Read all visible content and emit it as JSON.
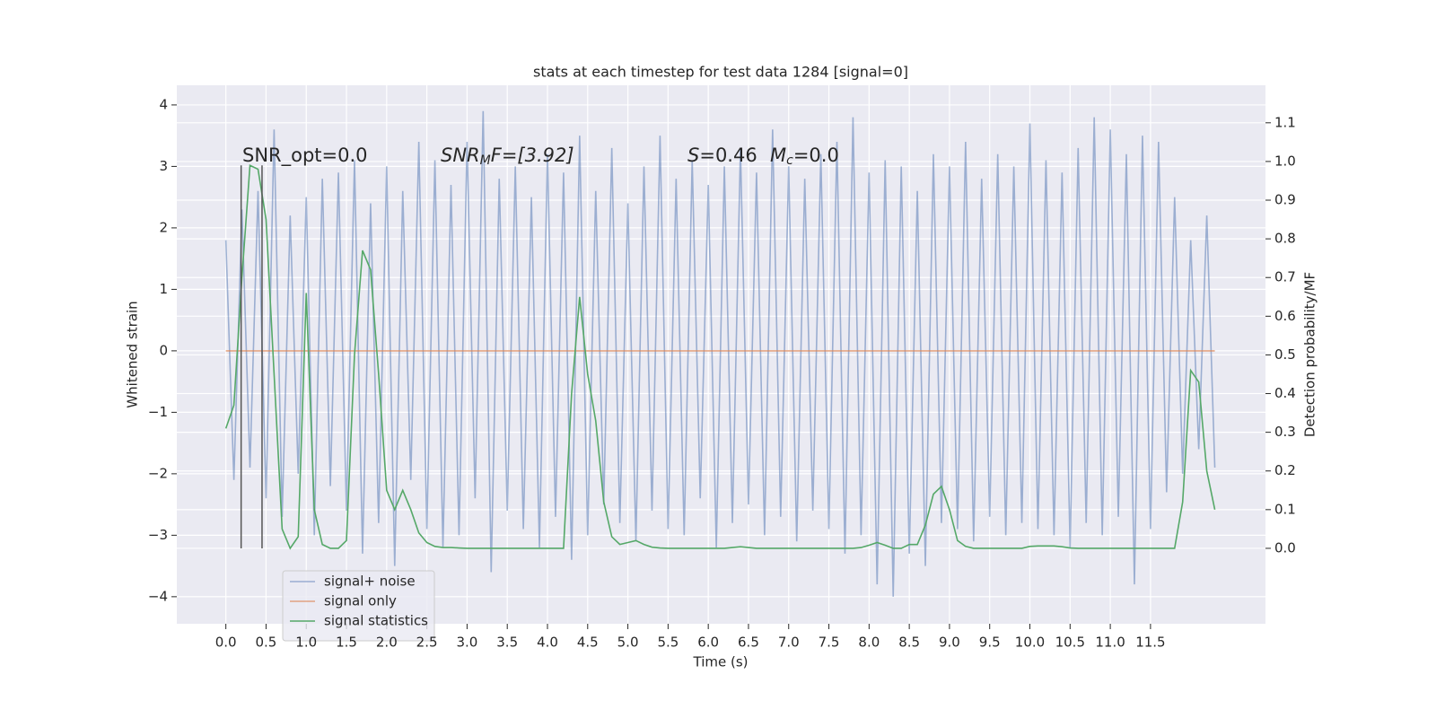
{
  "chart_data": {
    "type": "line",
    "title": "stats at each timestep for test data 1284 [signal=0]",
    "xlabel": "Time (s)",
    "ylabel": "Whitened strain",
    "y2label": "Detection probability/MF",
    "annotations": [
      [
        "SNR_opt=0.0"
      ],
      [
        "SNR",
        "M",
        "F=[3.92]"
      ],
      [
        "S",
        "=0.46"
      ],
      [
        "M",
        "c",
        "=0.0"
      ]
    ],
    "x": [
      0,
      0.1,
      0.2,
      0.3,
      0.4,
      0.5,
      0.6,
      0.7,
      0.8,
      0.9,
      1.0,
      1.1,
      1.2,
      1.3,
      1.4,
      1.5,
      1.6,
      1.7,
      1.8,
      1.9,
      2.0,
      2.1,
      2.2,
      2.3,
      2.4,
      2.5,
      2.6,
      2.7,
      2.8,
      2.9,
      3.0,
      3.1,
      3.2,
      3.3,
      3.4,
      3.5,
      3.6,
      3.7,
      3.8,
      3.9,
      4.0,
      4.1,
      4.2,
      4.3,
      4.4,
      4.5,
      4.6,
      4.7,
      4.8,
      4.9,
      5.0,
      5.1,
      5.2,
      5.3,
      5.4,
      5.5,
      5.6,
      5.7,
      5.8,
      5.9,
      6.0,
      6.1,
      6.2,
      6.3,
      6.4,
      6.5,
      6.6,
      6.7,
      6.8,
      6.9,
      7.0,
      7.1,
      7.2,
      7.3,
      7.4,
      7.5,
      7.6,
      7.7,
      7.8,
      7.9,
      8.0,
      8.1,
      8.2,
      8.3,
      8.4,
      8.5,
      8.6,
      8.7,
      8.8,
      8.9,
      9.0,
      9.1,
      9.2,
      9.3,
      9.4,
      9.5,
      9.6,
      9.7,
      9.8,
      9.9,
      10.0,
      10.1,
      10.2,
      10.3,
      10.4,
      10.5,
      10.6,
      10.7,
      10.8,
      10.9,
      11.0,
      11.1,
      11.2,
      11.3,
      11.4,
      11.5,
      11.6,
      11.7,
      11.8,
      11.9,
      12.0,
      12.1,
      12.2,
      12.3
    ],
    "series": [
      {
        "name": "signal+ noise",
        "color": "#4c72b0",
        "opacity": 0.5,
        "values": [
          1.8,
          -2.1,
          2.3,
          -1.9,
          2.6,
          -2.4,
          3.6,
          -2.7,
          2.2,
          -2.0,
          2.5,
          -3.0,
          2.8,
          -2.2,
          2.9,
          -2.6,
          3.1,
          -3.3,
          2.4,
          -2.8,
          3.0,
          -3.5,
          2.6,
          -2.1,
          3.4,
          -2.9,
          3.1,
          -3.2,
          2.7,
          -3.0,
          3.4,
          -2.4,
          3.9,
          -3.6,
          2.8,
          -2.6,
          3.0,
          -2.9,
          2.5,
          -3.2,
          3.2,
          -2.7,
          2.9,
          -3.4,
          3.5,
          -3.0,
          2.6,
          -2.5,
          3.3,
          -2.8,
          2.4,
          -3.1,
          3.0,
          -2.6,
          3.5,
          -2.9,
          2.8,
          -3.0,
          3.1,
          -2.4,
          2.7,
          -3.2,
          3.0,
          -2.8,
          3.3,
          -2.5,
          2.9,
          -3.0,
          3.6,
          -2.7,
          3.0,
          -3.1,
          2.8,
          -2.6,
          3.2,
          -2.9,
          3.4,
          -3.3,
          3.8,
          -3.0,
          2.9,
          -3.8,
          3.1,
          -4.0,
          3.0,
          -3.3,
          2.6,
          -3.5,
          3.2,
          -2.8,
          3.0,
          -2.9,
          3.4,
          -3.1,
          2.8,
          -2.7,
          3.2,
          -3.0,
          3.0,
          -2.8,
          3.7,
          -2.9,
          3.1,
          -3.0,
          2.9,
          -3.2,
          3.3,
          -2.8,
          3.8,
          -3.0,
          3.6,
          -2.7,
          3.2,
          -3.8,
          3.5,
          -2.9,
          3.4,
          -2.3,
          2.5,
          -2.0,
          1.8,
          -1.6,
          2.2,
          -1.9
        ]
      },
      {
        "name": "signal only",
        "color": "#dd8452",
        "opacity": 0.7,
        "x": [
          0,
          12.3
        ],
        "values": [
          0,
          0
        ]
      },
      {
        "name": "signal statistics",
        "color": "#55a868",
        "opacity": 1,
        "axis": "y2",
        "values": [
          0.31,
          0.37,
          0.7,
          0.99,
          0.98,
          0.85,
          0.45,
          0.05,
          0,
          0.03,
          0.66,
          0.1,
          0.01,
          0,
          0,
          0.02,
          0.5,
          0.77,
          0.72,
          0.45,
          0.15,
          0.1,
          0.15,
          0.1,
          0.04,
          0.015,
          0.005,
          0.002,
          0.002,
          0.001,
          0,
          0,
          0,
          0,
          0,
          0,
          0,
          0,
          0,
          0,
          0,
          0,
          0,
          0.4,
          0.65,
          0.45,
          0.33,
          0.12,
          0.03,
          0.01,
          0.015,
          0.02,
          0.01,
          0.003,
          0.001,
          0,
          0,
          0,
          0,
          0,
          0,
          0,
          0,
          0.002,
          0.004,
          0.002,
          0,
          0,
          0,
          0,
          0,
          0,
          0,
          0,
          0,
          0,
          0,
          0,
          0,
          0.002,
          0.008,
          0.015,
          0.008,
          0,
          0,
          0.01,
          0.01,
          0.06,
          0.14,
          0.16,
          0.1,
          0.02,
          0.005,
          0,
          0,
          0,
          0,
          0,
          0,
          0,
          0.005,
          0.006,
          0.006,
          0.006,
          0.004,
          0.001,
          0,
          0,
          0,
          0,
          0,
          0,
          0,
          0,
          0,
          0,
          0,
          0,
          0,
          0.12,
          0.46,
          0.43,
          0.2,
          0.1
        ]
      }
    ],
    "vlines": {
      "x": [
        0.19,
        0.45
      ],
      "y2": [
        0,
        0.99
      ],
      "color": "#555555"
    },
    "xlim": [
      -0.61,
      12.93
    ],
    "ylim": [
      -4.44,
      4.32
    ],
    "y2lim": [
      -0.195,
      1.197
    ],
    "xticks": [
      {
        "value": 0,
        "label": "0.0"
      },
      0.5,
      {
        "value": 1,
        "label": "1.0"
      },
      1.5,
      {
        "value": 2,
        "label": "2.0"
      },
      2.5,
      {
        "value": 3,
        "label": "3.0"
      },
      3.5,
      {
        "value": 4,
        "label": "4.0"
      },
      4.5,
      {
        "value": 5,
        "label": "5.0"
      },
      5.5,
      {
        "value": 6,
        "label": "6.0"
      },
      6.5,
      {
        "value": 7,
        "label": "7.0"
      },
      7.5,
      {
        "value": 8,
        "label": "8.0"
      },
      8.5,
      {
        "value": 9,
        "label": "9.0"
      },
      9.5,
      {
        "value": 10,
        "label": "10.0"
      },
      10.5,
      {
        "value": 11,
        "label": "11.0"
      },
      11.5
    ],
    "yticks": [
      {
        "value": -4,
        "label": "−4"
      },
      {
        "value": -3,
        "label": "−3"
      },
      {
        "value": -2,
        "label": "−2"
      },
      {
        "value": -1,
        "label": "−1"
      },
      0,
      1,
      2,
      3,
      4
    ],
    "y2ticks": [
      {
        "value": 0,
        "label": "0.0"
      },
      0.1,
      0.2,
      0.3,
      0.4,
      0.5,
      0.6,
      0.7,
      0.8,
      0.9,
      {
        "value": 1,
        "label": "1.0"
      },
      1.1
    ],
    "grid": true,
    "legend": "lower left"
  }
}
